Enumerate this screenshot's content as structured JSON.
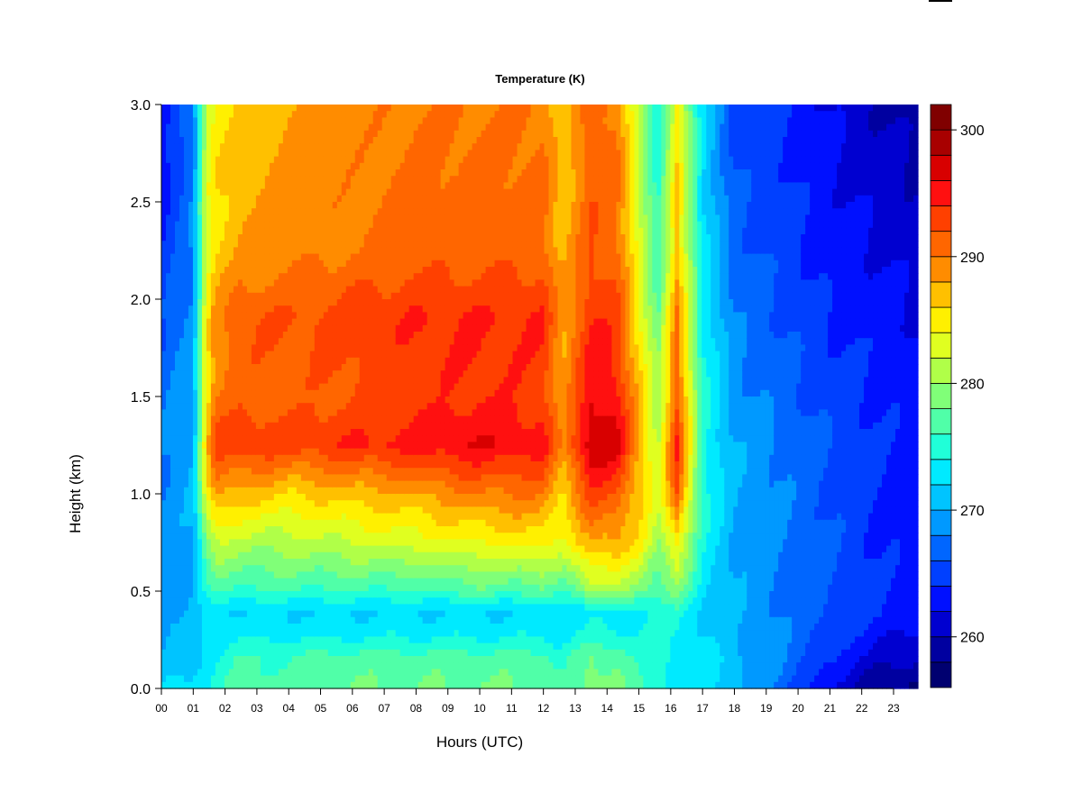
{
  "chart_data": {
    "type": "heatmap",
    "title": "Temperature (K)",
    "xlabel": "Hours (UTC)",
    "ylabel": "Height (km)",
    "xlim": [
      0,
      23.77
    ],
    "ylim": [
      0,
      3.0
    ],
    "xticks": [
      "00",
      "01",
      "02",
      "03",
      "04",
      "05",
      "06",
      "07",
      "08",
      "09",
      "10",
      "11",
      "12",
      "13",
      "14",
      "15",
      "16",
      "17",
      "18",
      "19",
      "20",
      "21",
      "22",
      "23"
    ],
    "yticks": [
      "0.0",
      "0.5",
      "1.0",
      "1.5",
      "2.0",
      "2.5",
      "3.0"
    ],
    "colorbar": {
      "levels": [
        256,
        258,
        260,
        262,
        264,
        266,
        268,
        270,
        272,
        274,
        276,
        278,
        280,
        282,
        284,
        286,
        288,
        290,
        292,
        294,
        296,
        298,
        300,
        302
      ],
      "colors": [
        "#000070",
        "#0000a0",
        "#0000d0",
        "#0010ff",
        "#0040ff",
        "#0066ff",
        "#0099ff",
        "#00c4ff",
        "#00eaff",
        "#20ffd8",
        "#50ffa8",
        "#80ff78",
        "#b0ff48",
        "#e0ff20",
        "#fff000",
        "#ffc000",
        "#ff8c00",
        "#ff6600",
        "#ff4000",
        "#ff1010",
        "#d80000",
        "#a80000",
        "#800000"
      ],
      "ticks": [
        "260",
        "270",
        "280",
        "290",
        "300"
      ],
      "tick_values": [
        260,
        270,
        280,
        290,
        300
      ]
    },
    "x": [
      0.0,
      1.0,
      1.4,
      1.7,
      2.5,
      4.0,
      6.0,
      8.0,
      10.0,
      12.0,
      12.6,
      13.5,
      14.3,
      15.0,
      15.6,
      16.2,
      17.0,
      18.0,
      19.5,
      21.0,
      22.5,
      23.77
    ],
    "y": [
      0,
      0.15,
      0.3,
      0.4,
      0.5,
      0.75,
      1.0,
      1.25,
      1.5,
      1.9,
      2.25,
      3.0
    ],
    "z": [
      [
        272,
        270,
        270,
        269,
        269,
        269,
        268,
        268,
        267,
        266,
        264,
        262
      ],
      [
        273,
        271,
        271,
        270,
        270,
        270,
        270,
        270,
        270,
        269,
        268,
        268
      ],
      [
        274,
        273,
        272,
        272,
        274,
        279,
        284,
        286,
        285,
        284,
        283,
        282
      ],
      [
        275,
        274,
        273,
        273,
        276,
        282,
        289,
        293,
        290,
        289,
        286,
        285
      ],
      [
        277,
        276,
        273,
        272,
        276,
        281,
        287,
        294,
        291,
        292,
        288,
        286
      ],
      [
        277,
        276,
        273,
        272,
        276,
        281,
        286,
        293,
        291,
        292,
        289,
        288
      ],
      [
        278,
        277,
        273,
        272,
        276,
        282,
        287,
        294,
        292,
        293,
        290,
        289
      ],
      [
        278,
        277,
        273,
        272,
        276,
        283,
        288,
        295,
        293,
        294,
        291,
        290
      ],
      [
        278,
        277,
        273,
        272,
        277,
        284,
        290,
        296,
        294,
        294,
        291,
        290
      ],
      [
        278,
        277,
        273,
        272,
        277,
        285,
        290,
        295,
        293,
        294,
        291,
        290
      ],
      [
        276,
        275,
        273,
        273,
        276,
        283,
        286,
        289,
        288,
        288,
        287,
        286
      ],
      [
        279,
        278,
        274,
        273,
        281,
        288,
        293,
        298,
        296,
        294,
        292,
        291
      ],
      [
        279,
        278,
        274,
        273,
        280,
        288,
        292,
        297,
        295,
        293,
        291,
        290
      ],
      [
        276,
        275,
        274,
        274,
        279,
        285,
        287,
        288,
        287,
        285,
        283,
        281
      ],
      [
        275,
        275,
        274,
        274,
        277,
        280,
        282,
        282,
        280,
        278,
        276,
        274
      ],
      [
        274,
        274,
        274,
        275,
        279,
        285,
        292,
        294,
        292,
        290,
        287,
        285
      ],
      [
        273,
        273,
        272,
        272,
        273,
        274,
        275,
        275,
        275,
        274,
        273,
        272
      ],
      [
        271,
        271,
        270,
        270,
        270,
        270,
        270,
        270,
        269,
        268,
        267,
        265
      ],
      [
        267,
        268,
        268,
        268,
        268,
        268,
        268,
        268,
        267,
        266,
        265,
        264
      ],
      [
        262,
        264,
        265,
        266,
        266,
        266,
        266,
        266,
        265,
        264,
        263,
        262
      ],
      [
        258,
        261,
        263,
        264,
        264,
        264,
        264,
        264,
        264,
        263,
        262,
        260
      ],
      [
        257,
        260,
        262,
        263,
        263,
        263,
        263,
        263,
        263,
        262,
        261,
        259
      ]
    ]
  }
}
